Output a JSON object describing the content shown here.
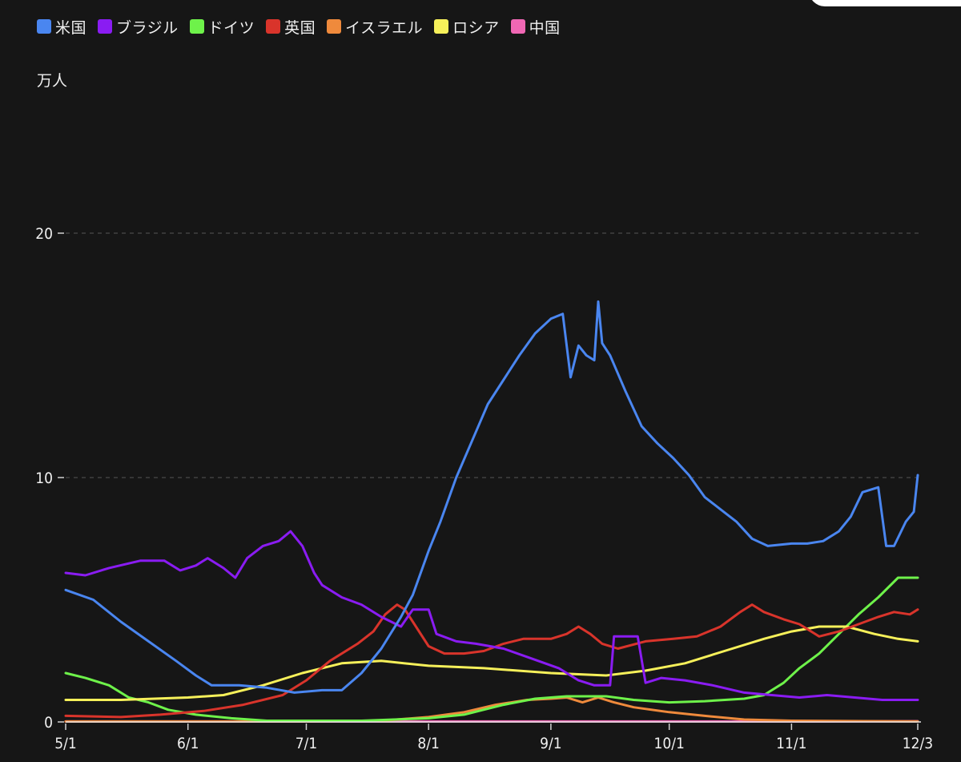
{
  "chart_data": {
    "type": "line",
    "unit_label": "万人",
    "x_tick_labels": [
      "5/1",
      "6/1",
      "7/1",
      "8/1",
      "9/1",
      "10/1",
      "11/1",
      "12/3"
    ],
    "x_tick_dates": [
      "5/1",
      "6/1",
      "7/1",
      "8/1",
      "9/1",
      "10/1",
      "11/1",
      "12/3"
    ],
    "y_ticks": [
      0,
      10,
      20
    ],
    "ylim": [
      0,
      23
    ],
    "grid": "horizontal-dashed",
    "legend_position": "top-left",
    "series": [
      {
        "name": "米国",
        "color": "#4a86f0",
        "points": [
          [
            "5/1",
            5.4
          ],
          [
            "5/8",
            5.0
          ],
          [
            "5/15",
            4.1
          ],
          [
            "5/22",
            3.3
          ],
          [
            "5/29",
            2.5
          ],
          [
            "6/3",
            1.9
          ],
          [
            "6/7",
            1.5
          ],
          [
            "6/14",
            1.5
          ],
          [
            "6/21",
            1.4
          ],
          [
            "6/28",
            1.2
          ],
          [
            "7/5",
            1.3
          ],
          [
            "7/10",
            1.3
          ],
          [
            "7/15",
            2.0
          ],
          [
            "7/20",
            3.0
          ],
          [
            "7/25",
            4.3
          ],
          [
            "7/28",
            5.2
          ],
          [
            "8/1",
            7.0
          ],
          [
            "8/4",
            8.2
          ],
          [
            "8/8",
            10.0
          ],
          [
            "8/12",
            11.5
          ],
          [
            "8/16",
            13.0
          ],
          [
            "8/20",
            14.0
          ],
          [
            "8/24",
            15.0
          ],
          [
            "8/28",
            15.9
          ],
          [
            "9/1",
            16.5
          ],
          [
            "9/4",
            16.7
          ],
          [
            "9/6",
            14.1
          ],
          [
            "9/8",
            15.4
          ],
          [
            "9/10",
            15.0
          ],
          [
            "9/12",
            14.8
          ],
          [
            "9/13",
            17.2
          ],
          [
            "9/14",
            15.5
          ],
          [
            "9/16",
            15.0
          ],
          [
            "9/20",
            13.5
          ],
          [
            "9/24",
            12.1
          ],
          [
            "9/28",
            11.4
          ],
          [
            "10/2",
            10.8
          ],
          [
            "10/6",
            10.1
          ],
          [
            "10/10",
            9.2
          ],
          [
            "10/14",
            8.7
          ],
          [
            "10/18",
            8.2
          ],
          [
            "10/22",
            7.5
          ],
          [
            "10/26",
            7.2
          ],
          [
            "11/1",
            7.3
          ],
          [
            "11/5",
            7.3
          ],
          [
            "11/9",
            7.4
          ],
          [
            "11/13",
            7.8
          ],
          [
            "11/16",
            8.4
          ],
          [
            "11/19",
            9.4
          ],
          [
            "11/23",
            9.6
          ],
          [
            "11/25",
            7.2
          ],
          [
            "11/27",
            7.2
          ],
          [
            "11/30",
            8.2
          ],
          [
            "12/2",
            8.6
          ],
          [
            "12/3",
            10.1
          ]
        ]
      },
      {
        "name": "ブラジル",
        "color": "#8a1cf2",
        "points": [
          [
            "5/1",
            6.1
          ],
          [
            "5/6",
            6.0
          ],
          [
            "5/12",
            6.3
          ],
          [
            "5/20",
            6.6
          ],
          [
            "5/26",
            6.6
          ],
          [
            "5/30",
            6.2
          ],
          [
            "6/3",
            6.4
          ],
          [
            "6/6",
            6.7
          ],
          [
            "6/10",
            6.3
          ],
          [
            "6/13",
            5.9
          ],
          [
            "6/16",
            6.7
          ],
          [
            "6/20",
            7.2
          ],
          [
            "6/24",
            7.4
          ],
          [
            "6/27",
            7.8
          ],
          [
            "6/30",
            7.2
          ],
          [
            "7/3",
            6.1
          ],
          [
            "7/5",
            5.6
          ],
          [
            "7/10",
            5.1
          ],
          [
            "7/15",
            4.8
          ],
          [
            "7/20",
            4.3
          ],
          [
            "7/25",
            3.9
          ],
          [
            "7/28",
            4.6
          ],
          [
            "8/1",
            4.6
          ],
          [
            "8/3",
            3.6
          ],
          [
            "8/8",
            3.3
          ],
          [
            "8/13",
            3.2
          ],
          [
            "8/20",
            3.0
          ],
          [
            "8/27",
            2.6
          ],
          [
            "9/3",
            2.2
          ],
          [
            "9/8",
            1.7
          ],
          [
            "9/12",
            1.5
          ],
          [
            "9/16",
            1.5
          ],
          [
            "9/17",
            3.5
          ],
          [
            "9/21",
            3.5
          ],
          [
            "9/23",
            3.5
          ],
          [
            "9/25",
            1.6
          ],
          [
            "9/29",
            1.8
          ],
          [
            "10/5",
            1.7
          ],
          [
            "10/12",
            1.5
          ],
          [
            "10/20",
            1.2
          ],
          [
            "10/27",
            1.1
          ],
          [
            "11/3",
            1.0
          ],
          [
            "11/10",
            1.1
          ],
          [
            "11/17",
            1.0
          ],
          [
            "11/24",
            0.9
          ],
          [
            "12/3",
            0.9
          ]
        ]
      },
      {
        "name": "ドイツ",
        "color": "#6ef24a",
        "points": [
          [
            "5/1",
            2.0
          ],
          [
            "5/6",
            1.8
          ],
          [
            "5/12",
            1.5
          ],
          [
            "5/17",
            1.0
          ],
          [
            "5/22",
            0.8
          ],
          [
            "5/27",
            0.5
          ],
          [
            "6/3",
            0.3
          ],
          [
            "6/12",
            0.15
          ],
          [
            "6/21",
            0.05
          ],
          [
            "7/1",
            0.05
          ],
          [
            "7/15",
            0.05
          ],
          [
            "8/1",
            0.15
          ],
          [
            "8/10",
            0.3
          ],
          [
            "8/20",
            0.7
          ],
          [
            "8/28",
            0.95
          ],
          [
            "9/5",
            1.05
          ],
          [
            "9/15",
            1.05
          ],
          [
            "9/22",
            0.9
          ],
          [
            "10/1",
            0.8
          ],
          [
            "10/10",
            0.85
          ],
          [
            "10/20",
            0.95
          ],
          [
            "10/25",
            1.1
          ],
          [
            "10/30",
            1.6
          ],
          [
            "11/3",
            2.2
          ],
          [
            "11/8",
            2.8
          ],
          [
            "11/13",
            3.6
          ],
          [
            "11/18",
            4.4
          ],
          [
            "11/23",
            5.1
          ],
          [
            "11/28",
            5.9
          ],
          [
            "12/1",
            5.9
          ],
          [
            "12/3",
            5.9
          ]
        ]
      },
      {
        "name": "英国",
        "color": "#d9342b",
        "points": [
          [
            "5/1",
            0.25
          ],
          [
            "5/15",
            0.2
          ],
          [
            "5/25",
            0.3
          ],
          [
            "6/5",
            0.45
          ],
          [
            "6/15",
            0.7
          ],
          [
            "6/25",
            1.1
          ],
          [
            "7/1",
            1.7
          ],
          [
            "7/7",
            2.5
          ],
          [
            "7/14",
            3.2
          ],
          [
            "7/18",
            3.7
          ],
          [
            "7/21",
            4.4
          ],
          [
            "7/24",
            4.8
          ],
          [
            "7/26",
            4.6
          ],
          [
            "7/28",
            4.1
          ],
          [
            "8/1",
            3.1
          ],
          [
            "8/5",
            2.8
          ],
          [
            "8/10",
            2.8
          ],
          [
            "8/15",
            2.9
          ],
          [
            "8/20",
            3.2
          ],
          [
            "8/25",
            3.4
          ],
          [
            "9/1",
            3.4
          ],
          [
            "9/5",
            3.6
          ],
          [
            "9/8",
            3.9
          ],
          [
            "9/11",
            3.6
          ],
          [
            "9/14",
            3.2
          ],
          [
            "9/18",
            3.0
          ],
          [
            "9/25",
            3.3
          ],
          [
            "10/2",
            3.4
          ],
          [
            "10/8",
            3.5
          ],
          [
            "10/14",
            3.9
          ],
          [
            "10/19",
            4.5
          ],
          [
            "10/22",
            4.8
          ],
          [
            "10/25",
            4.5
          ],
          [
            "10/30",
            4.2
          ],
          [
            "11/3",
            4.0
          ],
          [
            "11/8",
            3.5
          ],
          [
            "11/13",
            3.7
          ],
          [
            "11/18",
            4.0
          ],
          [
            "11/23",
            4.3
          ],
          [
            "11/27",
            4.5
          ],
          [
            "12/1",
            4.4
          ],
          [
            "12/3",
            4.6
          ]
        ]
      },
      {
        "name": "イスラエル",
        "color": "#ef8a3c",
        "points": [
          [
            "5/1",
            0.02
          ],
          [
            "6/1",
            0.02
          ],
          [
            "7/1",
            0.02
          ],
          [
            "7/20",
            0.05
          ],
          [
            "8/1",
            0.2
          ],
          [
            "8/10",
            0.4
          ],
          [
            "8/18",
            0.7
          ],
          [
            "8/26",
            0.9
          ],
          [
            "9/1",
            0.95
          ],
          [
            "9/5",
            1.0
          ],
          [
            "9/9",
            0.8
          ],
          [
            "9/13",
            1.0
          ],
          [
            "9/17",
            0.8
          ],
          [
            "9/22",
            0.6
          ],
          [
            "10/1",
            0.4
          ],
          [
            "10/10",
            0.25
          ],
          [
            "10/20",
            0.1
          ],
          [
            "11/1",
            0.05
          ],
          [
            "12/3",
            0.02
          ]
        ]
      },
      {
        "name": "ロシア",
        "color": "#f6f05a",
        "points": [
          [
            "5/1",
            0.9
          ],
          [
            "5/15",
            0.9
          ],
          [
            "6/1",
            1.0
          ],
          [
            "6/10",
            1.1
          ],
          [
            "6/20",
            1.5
          ],
          [
            "6/30",
            2.0
          ],
          [
            "7/10",
            2.4
          ],
          [
            "7/20",
            2.5
          ],
          [
            "8/1",
            2.3
          ],
          [
            "8/15",
            2.2
          ],
          [
            "9/1",
            2.0
          ],
          [
            "9/15",
            1.9
          ],
          [
            "9/25",
            2.1
          ],
          [
            "10/5",
            2.4
          ],
          [
            "10/15",
            2.9
          ],
          [
            "10/25",
            3.4
          ],
          [
            "11/1",
            3.7
          ],
          [
            "11/8",
            3.9
          ],
          [
            "11/15",
            3.9
          ],
          [
            "11/22",
            3.6
          ],
          [
            "11/28",
            3.4
          ],
          [
            "12/3",
            3.3
          ]
        ]
      },
      {
        "name": "中国",
        "color": "#f067b4",
        "points": [
          [
            "5/1",
            0.02
          ],
          [
            "6/1",
            0.02
          ],
          [
            "7/1",
            0.02
          ],
          [
            "8/1",
            0.02
          ],
          [
            "9/1",
            0.02
          ],
          [
            "10/1",
            0.02
          ],
          [
            "11/1",
            0.02
          ],
          [
            "12/3",
            0.03
          ]
        ]
      }
    ]
  }
}
